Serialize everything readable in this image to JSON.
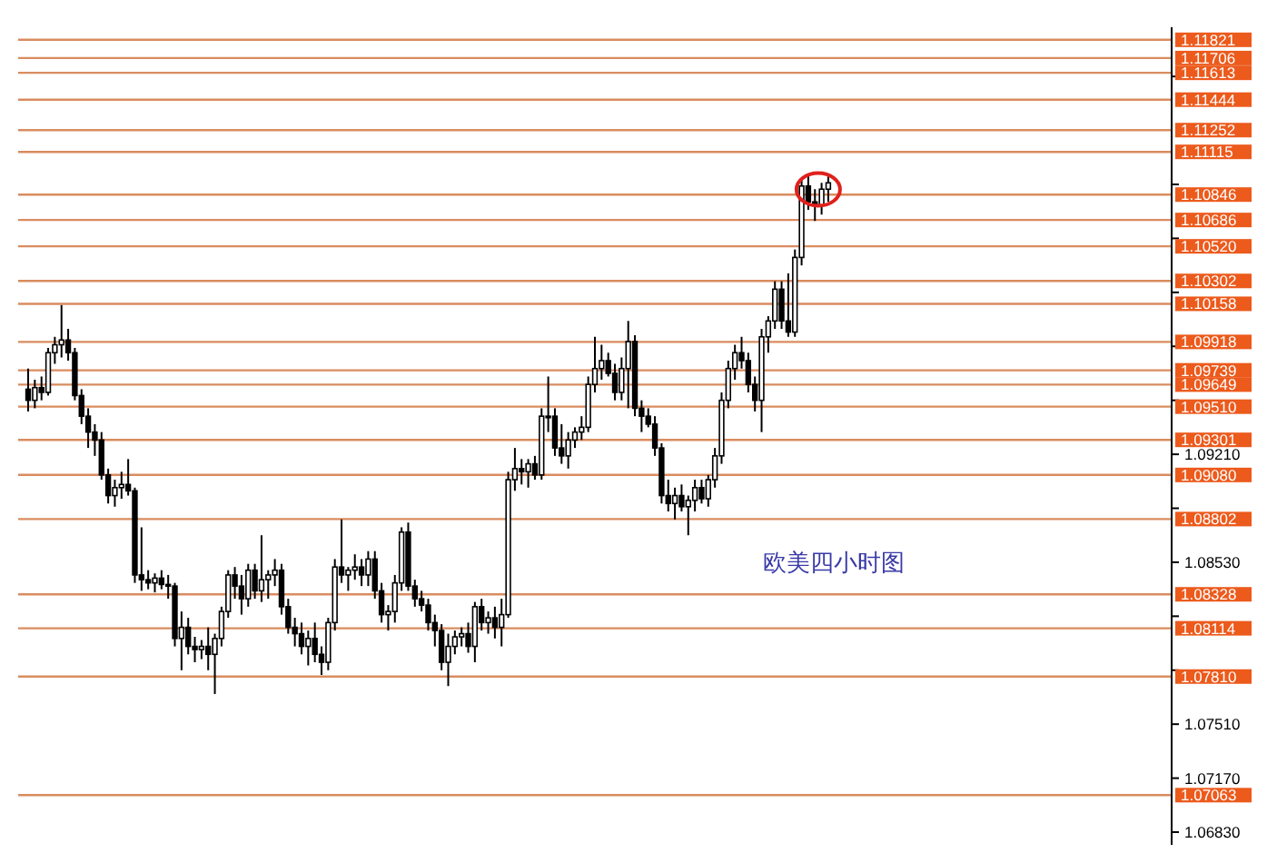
{
  "chart_data": {
    "type": "candlestick",
    "categories": [
      null,
      null,
      null,
      null,
      null,
      null,
      null,
      null,
      null,
      null,
      null,
      null,
      null,
      null,
      null,
      null,
      null,
      null,
      null,
      null,
      null,
      null,
      null,
      null,
      null,
      null,
      null,
      null,
      null,
      null,
      null,
      null,
      null,
      null,
      null,
      null,
      null,
      null,
      null,
      null,
      null,
      null,
      null,
      null,
      null,
      null,
      null,
      null,
      null,
      null,
      null,
      null,
      null,
      null,
      null,
      null,
      null,
      null,
      null,
      null,
      null,
      null,
      null,
      null,
      null,
      null,
      null,
      null,
      null,
      null,
      null,
      null,
      null,
      null,
      null,
      null,
      null,
      null,
      null,
      null,
      null,
      null,
      null,
      null,
      null,
      null,
      null,
      null,
      null,
      null,
      null,
      null,
      null,
      null,
      null,
      null,
      null,
      null,
      null,
      null,
      null,
      null,
      null,
      null,
      null,
      null,
      null,
      null,
      null,
      null,
      null,
      null,
      null,
      null,
      null,
      null,
      null,
      null,
      null,
      null,
      null,
      null,
      null,
      null,
      null,
      null,
      null,
      null,
      null,
      null,
      null,
      null,
      null,
      null,
      null,
      null,
      null,
      null,
      null,
      null,
      null,
      null,
      null,
      null,
      null,
      null,
      null,
      null,
      null,
      null,
      null,
      null,
      null,
      null,
      null,
      null,
      null,
      null,
      null,
      null,
      null,
      null,
      null,
      null,
      null,
      null,
      null,
      null,
      null,
      null,
      null,
      null,
      null
    ],
    "ohlc": [
      null,
      [
        1.0962,
        1.0975,
        1.0948,
        1.0955
      ],
      [
        1.0955,
        1.0968,
        1.095,
        1.0963
      ],
      [
        1.0963,
        1.097,
        1.0955,
        1.096
      ],
      [
        1.096,
        1.0988,
        1.0958,
        1.0985
      ],
      [
        1.0985,
        1.0995,
        1.0978,
        1.099
      ],
      [
        1.099,
        1.1015,
        1.0982,
        1.0993
      ],
      [
        1.0993,
        1.1,
        1.098,
        1.0985
      ],
      [
        1.0985,
        1.0988,
        1.0955,
        1.0958
      ],
      [
        1.0958,
        1.0962,
        1.094,
        1.0945
      ],
      [
        1.0945,
        1.095,
        1.0925,
        1.0935
      ],
      [
        1.0935,
        1.094,
        1.092,
        1.093
      ],
      [
        1.093,
        1.0935,
        1.0905,
        1.0908
      ],
      [
        1.0908,
        1.0912,
        1.089,
        1.0895
      ],
      [
        1.0895,
        1.0905,
        1.0888,
        1.09
      ],
      [
        1.09,
        1.091,
        1.0893,
        1.0902
      ],
      [
        1.0902,
        1.0918,
        1.0895,
        1.0898
      ],
      [
        1.0898,
        1.09,
        1.084,
        1.0845
      ],
      [
        1.0845,
        1.0875,
        1.0835,
        1.0842
      ],
      [
        1.0842,
        1.0848,
        1.0836,
        1.084
      ],
      [
        1.084,
        1.0846,
        1.0834,
        1.0843
      ],
      [
        1.0843,
        1.0848,
        1.0836,
        1.0839
      ],
      [
        1.0839,
        1.0845,
        1.083,
        1.0838
      ],
      [
        1.0838,
        1.084,
        1.08,
        1.0805
      ],
      [
        1.0805,
        1.0822,
        1.0785,
        1.0812
      ],
      [
        1.0812,
        1.0818,
        1.0795,
        1.08
      ],
      [
        1.08,
        1.0806,
        1.079,
        1.0798
      ],
      [
        1.0798,
        1.0804,
        1.0792,
        1.08
      ],
      [
        1.08,
        1.0812,
        1.0785,
        1.0795
      ],
      [
        1.0795,
        1.0808,
        1.077,
        1.0805
      ],
      [
        1.0805,
        1.0825,
        1.08,
        1.0822
      ],
      [
        1.0822,
        1.0848,
        1.0818,
        1.0845
      ],
      [
        1.0845,
        1.085,
        1.083,
        1.0838
      ],
      [
        1.0838,
        1.0845,
        1.082,
        1.083
      ],
      [
        1.083,
        1.0852,
        1.0825,
        1.0848
      ],
      [
        1.0848,
        1.0852,
        1.083,
        1.0835
      ],
      [
        1.0835,
        1.087,
        1.0828,
        1.0842
      ],
      [
        1.0842,
        1.0848,
        1.083,
        1.0845
      ],
      [
        1.0845,
        1.0855,
        1.0838,
        1.0848
      ],
      [
        1.0848,
        1.0852,
        1.082,
        1.0825
      ],
      [
        1.0825,
        1.083,
        1.0808,
        1.0812
      ],
      [
        1.0812,
        1.0818,
        1.08,
        1.0808
      ],
      [
        1.0808,
        1.0815,
        1.0795,
        1.08
      ],
      [
        1.08,
        1.081,
        1.0788,
        1.0805
      ],
      [
        1.0805,
        1.0815,
        1.079,
        1.0795
      ],
      [
        1.0795,
        1.08,
        1.0782,
        1.079
      ],
      [
        1.079,
        1.0818,
        1.0785,
        1.0815
      ],
      [
        1.0815,
        1.0855,
        1.081,
        1.085
      ],
      [
        1.085,
        1.088,
        1.084,
        1.0845
      ],
      [
        1.0845,
        1.085,
        1.0835,
        1.0848
      ],
      [
        1.0848,
        1.0858,
        1.0842,
        1.085
      ],
      [
        1.085,
        1.0855,
        1.0838,
        1.0845
      ],
      [
        1.0845,
        1.086,
        1.0838,
        1.0855
      ],
      [
        1.0855,
        1.086,
        1.083,
        1.0835
      ],
      [
        1.0835,
        1.084,
        1.0815,
        1.082
      ],
      [
        1.082,
        1.0826,
        1.081,
        1.0822
      ],
      [
        1.0822,
        1.0845,
        1.0815,
        1.084
      ],
      [
        1.084,
        1.0875,
        1.0835,
        1.0872
      ],
      [
        1.0872,
        1.0878,
        1.0835,
        1.0838
      ],
      [
        1.0838,
        1.0842,
        1.0825,
        1.083
      ],
      [
        1.083,
        1.0835,
        1.0822,
        1.0826
      ],
      [
        1.0826,
        1.083,
        1.081,
        1.0815
      ],
      [
        1.0815,
        1.082,
        1.08,
        1.081
      ],
      [
        1.081,
        1.0814,
        1.0785,
        1.079
      ],
      [
        1.079,
        1.0808,
        1.0775,
        1.08
      ],
      [
        1.08,
        1.081,
        1.0795,
        1.0806
      ],
      [
        1.0806,
        1.0812,
        1.08,
        1.0808
      ],
      [
        1.0808,
        1.0815,
        1.0796,
        1.08
      ],
      [
        1.08,
        1.0828,
        1.079,
        1.0825
      ],
      [
        1.0825,
        1.083,
        1.081,
        1.0815
      ],
      [
        1.0815,
        1.0822,
        1.0808,
        1.0818
      ],
      [
        1.0818,
        1.0825,
        1.0805,
        1.0812
      ],
      [
        1.0812,
        1.083,
        1.08,
        1.082
      ],
      [
        1.082,
        1.091,
        1.0818,
        1.0905
      ],
      [
        1.0905,
        1.0925,
        1.0898,
        1.0912
      ],
      [
        1.0912,
        1.0918,
        1.0902,
        1.091
      ],
      [
        1.091,
        1.0918,
        1.09,
        1.0915
      ],
      [
        1.0915,
        1.092,
        1.0905,
        1.0908
      ],
      [
        1.0908,
        1.095,
        1.0905,
        1.0945
      ],
      [
        1.0945,
        1.097,
        1.0935,
        1.0945
      ],
      [
        1.0945,
        1.095,
        1.092,
        1.0925
      ],
      [
        1.0925,
        1.094,
        1.0915,
        1.092
      ],
      [
        1.092,
        1.0935,
        1.0912,
        1.093
      ],
      [
        1.093,
        1.0938,
        1.0925,
        1.0935
      ],
      [
        1.0935,
        1.0945,
        1.093,
        1.0938
      ],
      [
        1.0938,
        1.097,
        1.0935,
        1.0965
      ],
      [
        1.0965,
        1.0995,
        1.096,
        1.0975
      ],
      [
        1.0975,
        1.099,
        1.0968,
        1.098
      ],
      [
        1.098,
        1.0985,
        1.097,
        1.0972
      ],
      [
        1.0972,
        1.0978,
        1.0955,
        1.096
      ],
      [
        1.096,
        1.0982,
        1.0955,
        1.0975
      ],
      [
        1.0975,
        1.1005,
        1.095,
        1.0992
      ],
      [
        1.0992,
        1.0996,
        1.0945,
        1.095
      ],
      [
        1.095,
        1.0955,
        1.0935,
        1.0945
      ],
      [
        1.0945,
        1.095,
        1.0938,
        1.094
      ],
      [
        1.094,
        1.0945,
        1.092,
        1.0925
      ],
      [
        1.0925,
        1.0928,
        1.089,
        1.0895
      ],
      [
        1.0895,
        1.0905,
        1.0885,
        1.089
      ],
      [
        1.089,
        1.09,
        1.088,
        1.0895
      ],
      [
        1.0895,
        1.0902,
        1.0885,
        1.0888
      ],
      [
        1.0888,
        1.0895,
        1.087,
        1.0892
      ],
      [
        1.0892,
        1.0905,
        1.0885,
        1.09
      ],
      [
        1.09,
        1.0905,
        1.089,
        1.0893
      ],
      [
        1.0893,
        1.0908,
        1.0888,
        1.0905
      ],
      [
        1.0905,
        1.0925,
        1.09,
        1.092
      ],
      [
        1.092,
        1.096,
        1.0915,
        1.0955
      ],
      [
        1.0955,
        1.098,
        1.095,
        1.0975
      ],
      [
        1.0975,
        1.099,
        1.0968,
        1.0985
      ],
      [
        1.0985,
        1.0995,
        1.0975,
        1.098
      ],
      [
        1.098,
        1.0985,
        1.096,
        1.0965
      ],
      [
        1.0965,
        1.097,
        1.0948,
        1.0955
      ],
      [
        1.0955,
        1.1,
        1.0935,
        1.0995
      ],
      [
        1.0995,
        1.1008,
        1.0985,
        1.1005
      ],
      [
        1.1005,
        1.103,
        1.1,
        1.1025
      ],
      [
        1.1025,
        1.103,
        1.1,
        1.1005
      ],
      [
        1.1005,
        1.1035,
        1.0995,
        1.0998
      ],
      [
        1.0998,
        1.105,
        1.0995,
        1.1045
      ],
      [
        1.1045,
        1.1095,
        1.104,
        1.109
      ],
      [
        1.109,
        1.1097,
        1.1075,
        1.108
      ],
      [
        1.108,
        1.1088,
        1.1068,
        1.1078
      ],
      [
        1.1078,
        1.1092,
        1.1072,
        1.1088
      ],
      [
        1.1088,
        1.1096,
        1.108,
        1.1092
      ],
      null,
      null,
      null,
      null,
      null,
      null,
      null,
      null,
      null,
      null,
      null,
      null,
      null,
      null,
      null,
      null,
      null,
      null,
      null,
      null,
      null,
      null,
      null,
      null,
      null,
      null,
      null,
      null,
      null,
      null,
      null,
      null,
      null,
      null,
      null,
      null,
      null,
      null,
      null,
      null,
      null,
      null,
      null,
      null,
      null,
      null,
      null,
      null,
      null,
      null,
      null
    ],
    "ylim": [
      1.0675,
      1.119
    ],
    "yticks": [
      {
        "value": 1.0683,
        "label": "1.06830"
      },
      {
        "value": 1.0717,
        "label": "1.07170"
      },
      {
        "value": 1.0751,
        "label": "1.07510"
      },
      {
        "value": 1.0785,
        "label": null
      },
      {
        "value": 1.0819,
        "label": null
      },
      {
        "value": 1.0853,
        "label": "1.08530"
      },
      {
        "value": 1.0887,
        "label": null
      },
      {
        "value": 1.0921,
        "label": "1.09210"
      },
      {
        "value": 1.0955,
        "label": null
      },
      {
        "value": 1.0989,
        "label": null
      },
      {
        "value": 1.1023,
        "label": null
      },
      {
        "value": 1.1057,
        "label": null
      },
      {
        "value": 1.1091,
        "label": null
      },
      {
        "value": 1.1159,
        "label": null
      }
    ],
    "tick_labels": "y",
    "ref_lines": [
      {
        "axis": "y",
        "value": 1.11821,
        "label": "1.11821",
        "color": "#d98c5f"
      },
      {
        "axis": "y",
        "value": 1.11706,
        "label": "1.11706",
        "color": "#d98c5f"
      },
      {
        "axis": "y",
        "value": 1.11613,
        "label": "1.11613",
        "color": "#d98c5f"
      },
      {
        "axis": "y",
        "value": 1.11444,
        "label": "1.11444",
        "color": "#d98c5f"
      },
      {
        "axis": "y",
        "value": 1.11252,
        "label": "1.11252",
        "color": "#d98c5f"
      },
      {
        "axis": "y",
        "value": 1.11115,
        "label": "1.11115",
        "color": "#d98c5f"
      },
      {
        "axis": "y",
        "value": 1.10846,
        "label": "1.10846",
        "color": "#d98c5f"
      },
      {
        "axis": "y",
        "value": 1.10686,
        "label": "1.10686",
        "color": "#d98c5f"
      },
      {
        "axis": "y",
        "value": 1.1052,
        "label": "1.10520",
        "color": "#d98c5f"
      },
      {
        "axis": "y",
        "value": 1.10302,
        "label": "1.10302",
        "color": "#d98c5f"
      },
      {
        "axis": "y",
        "value": 1.10158,
        "label": "1.10158",
        "color": "#d98c5f"
      },
      {
        "axis": "y",
        "value": 1.09918,
        "label": "1.09918",
        "color": "#d98c5f"
      },
      {
        "axis": "y",
        "value": 1.09739,
        "label": "1.09739",
        "color": "#d98c5f"
      },
      {
        "axis": "y",
        "value": 1.09649,
        "label": "1.09649",
        "color": "#d98c5f"
      },
      {
        "axis": "y",
        "value": 1.0951,
        "label": "1.09510",
        "color": "#d98c5f"
      },
      {
        "axis": "y",
        "value": 1.09301,
        "label": "1.09301",
        "color": "#d98c5f"
      },
      {
        "axis": "y",
        "value": 1.0908,
        "label": "1.09080",
        "color": "#d98c5f"
      },
      {
        "axis": "y",
        "value": 1.08802,
        "label": "1.08802",
        "color": "#d98c5f"
      },
      {
        "axis": "y",
        "value": 1.08328,
        "label": "1.08328",
        "color": "#d98c5f"
      },
      {
        "axis": "y",
        "value": 1.08114,
        "label": "1.08114",
        "color": "#d98c5f"
      },
      {
        "axis": "y",
        "value": 1.0781,
        "label": "1.07810",
        "color": "#d98c5f"
      },
      {
        "axis": "y",
        "value": 1.07063,
        "label": "1.07063",
        "color": "#d98c5f"
      }
    ],
    "annotations": [
      "欧美四小时图"
    ]
  }
}
